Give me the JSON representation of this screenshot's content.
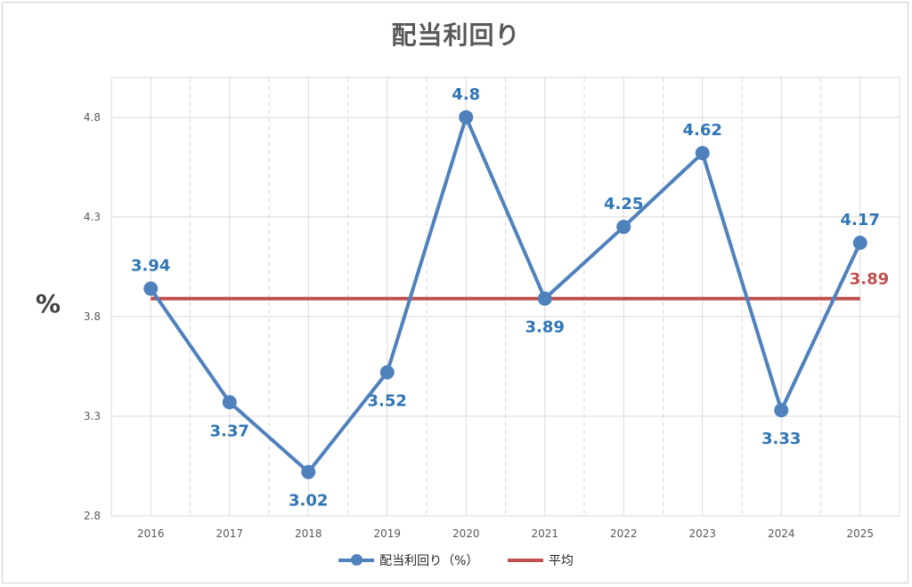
{
  "chart_data": {
    "type": "line",
    "title": "配当利回り",
    "ylabel": "%",
    "xlabel": "",
    "categories": [
      "2016",
      "2017",
      "2018",
      "2019",
      "2020",
      "2021",
      "2022",
      "2023",
      "2024",
      "2025"
    ],
    "series": [
      {
        "name": "配当利回り（%）",
        "color": "#4f81bd",
        "values": [
          3.94,
          3.37,
          3.02,
          3.52,
          4.8,
          3.89,
          4.25,
          4.62,
          3.33,
          4.17
        ],
        "data_labels": [
          "3.94",
          "3.37",
          "3.02",
          "3.52",
          "4.8",
          "3.89",
          "4.25",
          "4.62",
          "3.33",
          "4.17"
        ]
      },
      {
        "name": "平均",
        "color": "#c0504d",
        "values": [
          3.89,
          3.89,
          3.89,
          3.89,
          3.89,
          3.89,
          3.89,
          3.89,
          3.89,
          3.89
        ],
        "end_label": "3.89"
      }
    ],
    "ylim": [
      2.8,
      5.0
    ],
    "yticks": [
      "2.8",
      "3.3",
      "3.8",
      "4.3",
      "4.8"
    ],
    "grid": true,
    "legend_position": "bottom"
  }
}
